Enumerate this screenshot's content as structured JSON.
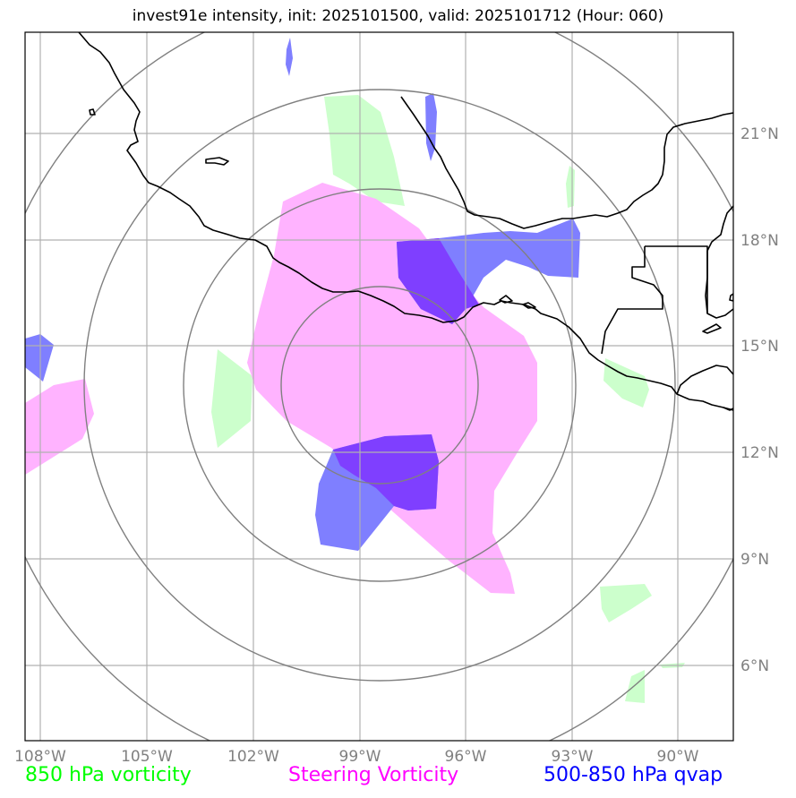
{
  "title": "invest91e intensity, init: 2025101500, valid: 2025101712 (Hour: 060)",
  "map": {
    "lon_labels": [
      "108°W",
      "105°W",
      "102°W",
      "99°W",
      "96°W",
      "93°W",
      "90°W"
    ],
    "lat_labels": [
      "21°N",
      "18°N",
      "15°N",
      "12°N",
      "9°N",
      "6°N"
    ]
  },
  "legend": [
    {
      "label": "850 hPa vorticity",
      "color": "#00ff00"
    },
    {
      "label": "Steering Vorticity",
      "color": "#ff00ff"
    },
    {
      "label": "500-850 hPa qvap",
      "color": "#0000ff"
    }
  ],
  "colors": {
    "vort850_fill": "#ccffcc",
    "steering_fill": "#ffb3ff",
    "qvap_fill": "#7f7fff",
    "overlap_fill": "#7f3fff",
    "grid": "#b0b0b0",
    "range_rings": "#808080",
    "coastline": "#000000"
  }
}
